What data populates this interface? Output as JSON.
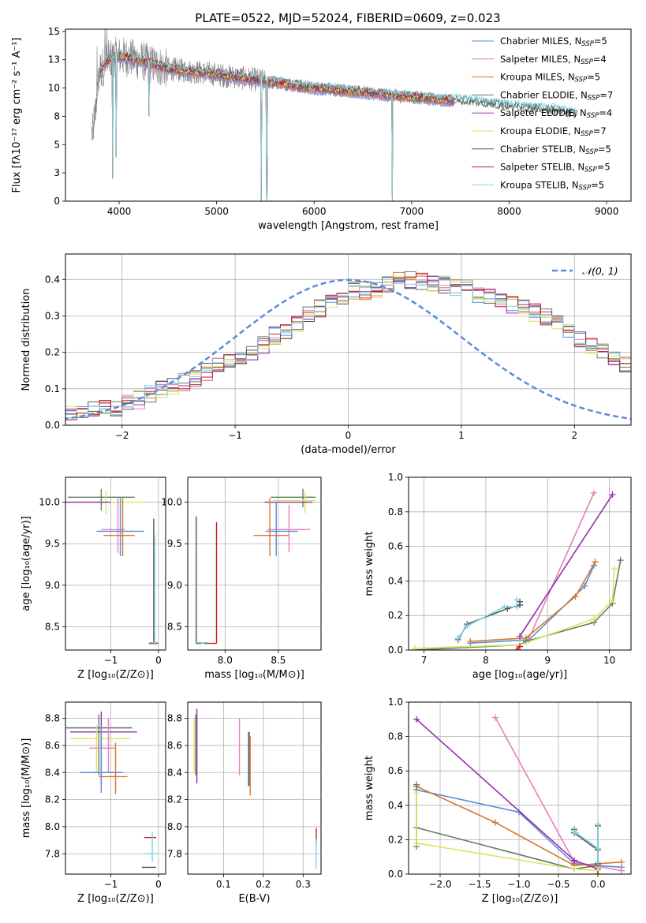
{
  "title": "PLATE=0522, MJD=52024, FIBERID=0609, z=0.023",
  "series_colors": [
    "#5b8bd9",
    "#e47fbd",
    "#d9782a",
    "#5e7f63",
    "#9030aa",
    "#d9e65e",
    "#555555",
    "#c81e1e",
    "#7fd4e0"
  ],
  "chart_data": [
    {
      "type": "line",
      "id": "spectrum",
      "title": "PLATE=0522, MJD=52024, FIBERID=0609, z=0.023",
      "xlabel": "wavelength [Angstrom, rest frame]",
      "ylabel": "Flux [fλ10⁻¹⁷ erg cm⁻² s⁻¹ A⁻¹]",
      "xlim": [
        3450,
        9250
      ],
      "ylim": [
        0,
        15.2
      ],
      "xticks": [
        4000,
        5000,
        6000,
        7000,
        8000,
        9000
      ],
      "yticks": [
        0.0,
        2.5,
        5.0,
        7.5,
        10.0,
        12.5,
        15.0
      ],
      "legend_position": "upper right",
      "legend": [
        {
          "name": "Chabrier MILES, N",
          "sub": "SSP",
          "suffix": "=5"
        },
        {
          "name": "Salpeter MILES, N",
          "sub": "SSP",
          "suffix": "=4"
        },
        {
          "name": "Kroupa MILES, N",
          "sub": "SSP",
          "suffix": "=5"
        },
        {
          "name": "Chabrier ELODIE, N",
          "sub": "SSP",
          "suffix": "=7"
        },
        {
          "name": "Salpeter ELODIE, N",
          "sub": "SSP",
          "suffix": "=4"
        },
        {
          "name": "Kroupa ELODIE, N",
          "sub": "SSP",
          "suffix": "=7"
        },
        {
          "name": "Chabrier STELIB, N",
          "sub": "SSP",
          "suffix": "=5"
        },
        {
          "name": "Salpeter STELIB, N",
          "sub": "SSP",
          "suffix": "=5"
        },
        {
          "name": "Kroupa STELIB, N",
          "sub": "SSP",
          "suffix": "=5"
        }
      ],
      "model_continuum": [
        [
          3730,
          6.0
        ],
        [
          3800,
          11.5
        ],
        [
          3900,
          12.6
        ],
        [
          4000,
          12.8
        ],
        [
          4100,
          12.7
        ],
        [
          4300,
          12.2
        ],
        [
          4500,
          11.7
        ],
        [
          5000,
          11.2
        ],
        [
          5500,
          10.6
        ],
        [
          6000,
          10.0
        ],
        [
          6500,
          9.6
        ],
        [
          7000,
          9.2
        ],
        [
          7400,
          8.9
        ],
        [
          7500,
          8.9
        ],
        [
          8000,
          8.4
        ],
        [
          8500,
          8.0
        ],
        [
          8700,
          7.6
        ]
      ],
      "model_spikes": [
        [
          3935,
          2.0
        ],
        [
          3970,
          3.9
        ],
        [
          4305,
          7.5
        ],
        [
          5460,
          0.0
        ],
        [
          5515,
          0.0
        ],
        [
          6800,
          0.0
        ]
      ],
      "data_range": [
        3720,
        7440
      ]
    },
    {
      "type": "histogram",
      "id": "residuals",
      "xlabel": "(data-model)/error",
      "ylabel": "Normed distribution",
      "xlim": [
        -2.5,
        2.5
      ],
      "ylim": [
        0,
        0.47
      ],
      "xticks": [
        -2,
        -1,
        0,
        1,
        2
      ],
      "yticks": [
        0.0,
        0.1,
        0.2,
        0.3,
        0.4
      ],
      "bin_width": 0.1,
      "grid": true,
      "reference_curve": {
        "name": "𝒩(0, 1)",
        "mean": 0,
        "sigma": 1,
        "style": "dashed"
      },
      "base_counts": [
        0.023,
        0.028,
        0.034,
        0.04,
        0.044,
        0.05,
        0.058,
        0.07,
        0.085,
        0.1,
        0.11,
        0.118,
        0.13,
        0.145,
        0.165,
        0.18,
        0.19,
        0.2,
        0.22,
        0.245,
        0.26,
        0.28,
        0.3,
        0.32,
        0.34,
        0.355,
        0.37,
        0.37,
        0.375,
        0.385,
        0.395,
        0.4,
        0.395,
        0.39,
        0.385,
        0.38,
        0.375,
        0.36,
        0.35,
        0.34,
        0.33,
        0.32,
        0.31,
        0.295,
        0.28,
        0.26,
        0.24,
        0.22,
        0.2,
        0.18,
        0.165,
        0.15,
        0.14,
        0.12,
        0.1,
        0.085,
        0.075,
        0.065,
        0.055,
        0.05,
        0.045,
        0.04,
        0.035,
        0.03,
        0.027,
        0.025,
        0.023,
        0.022
      ],
      "base_start": -2.6
    },
    {
      "type": "scatter",
      "id": "age-vs-Z",
      "xlabel": "Z [log₁₀(Z/Z⊙)]",
      "ylabel": "age  [log₁₀(age/yr)]",
      "xlim": [
        -1.95,
        0.15
      ],
      "ylim": [
        8.22,
        10.3
      ],
      "xticks": [
        -1,
        0
      ],
      "yticks": [
        8.5,
        9.0,
        9.5,
        10.0
      ],
      "errorbars": [
        {
          "series": 3,
          "x": -1.2,
          "xerr": [
            0.7,
            0.7
          ],
          "y": 10.06,
          "yerr": [
            0.16,
            0.1
          ]
        },
        {
          "series": 5,
          "x": -1.1,
          "xerr": [
            0.8,
            0.8
          ],
          "y": 10.0,
          "yerr": [
            0.15,
            0.14
          ]
        },
        {
          "series": 4,
          "x": -1.0,
          "xerr": [
            0.95,
            0.0
          ],
          "y": 10.0,
          "yerr": [
            0.0,
            0.0
          ]
        },
        {
          "series": 1,
          "x": -0.85,
          "xerr": [
            0.35,
            0.15
          ],
          "y": 9.67,
          "yerr": [
            0.28,
            0.38
          ]
        },
        {
          "series": 0,
          "x": -0.8,
          "xerr": [
            0.5,
            0.5
          ],
          "y": 9.65,
          "yerr": [
            0.3,
            0.4
          ]
        },
        {
          "series": 2,
          "x": -0.75,
          "xerr": [
            0.4,
            0.25
          ],
          "y": 9.6,
          "yerr": [
            0.25,
            0.45
          ]
        },
        {
          "series": 6,
          "x": -0.1,
          "xerr": [
            0.05,
            0.05
          ],
          "y": 8.3,
          "yerr": [
            0.0,
            1.5
          ]
        },
        {
          "series": 7,
          "x": -0.05,
          "xerr": [
            0.15,
            0.05
          ],
          "y": 8.3,
          "yerr": [
            0.0,
            0.0
          ]
        },
        {
          "series": 8,
          "x": -0.08,
          "xerr": [
            0.12,
            0.08
          ],
          "y": 8.31,
          "yerr": [
            0.03,
            1.3
          ]
        }
      ]
    },
    {
      "type": "scatter",
      "id": "age-vs-mass",
      "xlabel": "mass [log₁₀(M/M⊙)]",
      "ylabel": "",
      "xlim": [
        7.65,
        8.9
      ],
      "ylim": [
        8.22,
        10.3
      ],
      "xticks": [
        8.0,
        8.5
      ],
      "yticks": [
        8.5,
        9.0,
        9.5,
        10.0
      ],
      "errorbars": [
        {
          "series": 3,
          "x": 8.73,
          "xerr": [
            0.3,
            0.12
          ],
          "y": 10.06,
          "yerr": [
            0.12,
            0.1
          ]
        },
        {
          "series": 5,
          "x": 8.75,
          "xerr": [
            0.3,
            0.1
          ],
          "y": 10.02,
          "yerr": [
            0.15,
            0.1
          ]
        },
        {
          "series": 4,
          "x": 8.67,
          "xerr": [
            0.3,
            0.15
          ],
          "y": 10.0,
          "yerr": [
            0.0,
            0.0
          ]
        },
        {
          "series": 1,
          "x": 8.6,
          "xerr": [
            0.2,
            0.2
          ],
          "y": 9.67,
          "yerr": [
            0.27,
            0.3
          ]
        },
        {
          "series": 0,
          "x": 8.48,
          "xerr": [
            0.1,
            0.2
          ],
          "y": 9.65,
          "yerr": [
            0.3,
            0.35
          ]
        },
        {
          "series": 2,
          "x": 8.42,
          "xerr": [
            0.15,
            0.18
          ],
          "y": 9.6,
          "yerr": [
            0.25,
            0.45
          ]
        },
        {
          "series": 6,
          "x": 7.73,
          "xerr": [
            0.0,
            0.05
          ],
          "y": 8.3,
          "yerr": [
            0.0,
            1.53
          ]
        },
        {
          "series": 7,
          "x": 7.92,
          "xerr": [
            0.12,
            0.0
          ],
          "y": 8.3,
          "yerr": [
            0.0,
            1.46
          ]
        },
        {
          "series": 8,
          "x": 7.79,
          "xerr": [
            0.06,
            0.06
          ],
          "y": 8.31,
          "yerr": [
            0.0,
            0.0
          ]
        }
      ]
    },
    {
      "type": "line",
      "id": "weight-vs-age",
      "xlabel": "age  [log₁₀(age/yr)]",
      "ylabel": "mass weight",
      "xlim": [
        6.75,
        10.35
      ],
      "ylim": [
        0,
        1.0
      ],
      "xticks": [
        7,
        8,
        9,
        10
      ],
      "yticks": [
        0.0,
        0.2,
        0.4,
        0.6,
        0.8,
        1.0
      ],
      "grid": true,
      "series": [
        {
          "series": 0,
          "x": [
            7.75,
            8.7,
            9.6,
            9.75
          ],
          "y": [
            0.04,
            0.06,
            0.37,
            0.49
          ]
        },
        {
          "series": 1,
          "x": [
            8.7,
            9.75
          ],
          "y": [
            0.07,
            0.91
          ]
        },
        {
          "series": 2,
          "x": [
            7.75,
            8.65,
            9.45,
            9.77
          ],
          "y": [
            0.05,
            0.07,
            0.31,
            0.51
          ]
        },
        {
          "series": 3,
          "x": [
            6.85,
            8.55,
            8.65,
            9.75,
            10.05,
            10.18
          ],
          "y": [
            0.0,
            0.03,
            0.05,
            0.16,
            0.27,
            0.52
          ]
        },
        {
          "series": 4,
          "x": [
            8.55,
            10.05
          ],
          "y": [
            0.08,
            0.9
          ]
        },
        {
          "series": 5,
          "x": [
            6.85,
            8.55,
            9.75,
            10.05,
            10.08
          ],
          "y": [
            0.01,
            0.03,
            0.18,
            0.29,
            0.47
          ]
        },
        {
          "series": 6,
          "x": [
            7.55,
            7.7,
            8.35,
            8.55,
            8.55
          ],
          "y": [
            0.06,
            0.15,
            0.24,
            0.26,
            0.28
          ]
        },
        {
          "series": 8,
          "x": [
            7.55,
            7.7,
            8.3,
            8.5,
            8.5
          ],
          "y": [
            0.07,
            0.14,
            0.25,
            0.25,
            0.29
          ]
        },
        {
          "series": 7,
          "x": [
            8.55,
            8.5
          ],
          "y": [
            0.02,
            0.0
          ]
        }
      ]
    },
    {
      "type": "scatter",
      "id": "mass-vs-Z",
      "xlabel": "Z [log₁₀(Z/Z⊙)]",
      "ylabel": "mass [log₁₀(M/M⊙)]",
      "xlim": [
        -1.95,
        0.15
      ],
      "ylim": [
        7.65,
        8.92
      ],
      "xticks": [
        -1,
        0
      ],
      "yticks": [
        7.8,
        8.0,
        8.2,
        8.4,
        8.6,
        8.8
      ],
      "errorbars": [
        {
          "series": 3,
          "x": -1.25,
          "xerr": [
            0.7,
            0.7
          ],
          "y": 8.73,
          "yerr": [
            0.35,
            0.1
          ]
        },
        {
          "series": 4,
          "x": -1.2,
          "xerr": [
            0.65,
            0.75
          ],
          "y": 8.7,
          "yerr": [
            0.39,
            0.15
          ]
        },
        {
          "series": 5,
          "x": -1.3,
          "xerr": [
            0.55,
            0.7
          ],
          "y": 8.65,
          "yerr": [
            0.25,
            0.1
          ]
        },
        {
          "series": 1,
          "x": -1.05,
          "xerr": [
            0.4,
            0.15
          ],
          "y": 8.58,
          "yerr": [
            0.18,
            0.22
          ]
        },
        {
          "series": 0,
          "x": -1.2,
          "xerr": [
            0.45,
            0.45
          ],
          "y": 8.4,
          "yerr": [
            0.15,
            0.35
          ]
        },
        {
          "series": 2,
          "x": -0.9,
          "xerr": [
            0.35,
            0.25
          ],
          "y": 8.37,
          "yerr": [
            0.13,
            0.25
          ]
        },
        {
          "series": 7,
          "x": -0.15,
          "xerr": [
            0.15,
            0.1
          ],
          "y": 7.92,
          "yerr": [
            0.0,
            0.0
          ]
        },
        {
          "series": 6,
          "x": -0.15,
          "xerr": [
            0.2,
            0.1
          ],
          "y": 7.7,
          "yerr": [
            0.0,
            0.0
          ]
        },
        {
          "series": 8,
          "x": -0.13,
          "xerr": [
            0.14,
            0.12
          ],
          "y": 7.8,
          "yerr": [
            0.06,
            0.16
          ]
        }
      ]
    },
    {
      "type": "scatter",
      "id": "mass-vs-EBV",
      "xlabel": "E(B-V)",
      "ylabel": "",
      "xlim": [
        0.01,
        0.345
      ],
      "ylim": [
        7.65,
        8.92
      ],
      "xticks": [
        0.1,
        0.2,
        0.3
      ],
      "yticks": [
        7.8,
        8.0,
        8.2,
        8.4,
        8.6,
        8.8
      ],
      "errorbars": [
        {
          "series": 3,
          "x": 0.03,
          "xerr": [
            0,
            0
          ],
          "y": 8.73,
          "yerr": [
            0.35,
            0.1
          ]
        },
        {
          "series": 5,
          "x": 0.026,
          "xerr": [
            0,
            0
          ],
          "y": 8.65,
          "yerr": [
            0.25,
            0.15
          ]
        },
        {
          "series": 4,
          "x": 0.033,
          "xerr": [
            0,
            0
          ],
          "y": 8.7,
          "yerr": [
            0.38,
            0.17
          ]
        },
        {
          "series": 1,
          "x": 0.14,
          "xerr": [
            0,
            0
          ],
          "y": 8.58,
          "yerr": [
            0.2,
            0.22
          ]
        },
        {
          "series": 0,
          "x": 0.165,
          "xerr": [
            0,
            0
          ],
          "y": 8.5,
          "yerr": [
            0.2,
            0.2
          ]
        },
        {
          "series": 2,
          "x": 0.167,
          "xerr": [
            0,
            0
          ],
          "y": 8.45,
          "yerr": [
            0.22,
            0.22
          ]
        },
        {
          "series": 6,
          "x": 0.163,
          "xerr": [
            0,
            0
          ],
          "y": 8.5,
          "yerr": [
            0.2,
            0.2
          ]
        },
        {
          "series": 7,
          "x": 0.333,
          "xerr": [
            0,
            0
          ],
          "y": 7.92,
          "yerr": [
            0.05,
            0.07
          ]
        },
        {
          "series": 8,
          "x": 0.333,
          "xerr": [
            0,
            0
          ],
          "y": 7.79,
          "yerr": [
            0.1,
            0.12
          ]
        }
      ]
    },
    {
      "type": "line",
      "id": "weight-vs-Z",
      "xlabel": "Z [log₁₀(Z/Z⊙)]",
      "ylabel": "mass weight",
      "xlim": [
        -2.4,
        0.42
      ],
      "ylim": [
        0,
        1.0
      ],
      "xticks": [
        -2.0,
        -1.5,
        -1.0,
        -0.5,
        0.0
      ],
      "yticks": [
        0.0,
        0.2,
        0.4,
        0.6,
        0.8,
        1.0
      ],
      "grid": true,
      "series": [
        {
          "series": 0,
          "x": [
            -2.3,
            -1.0,
            -0.3,
            0.3
          ],
          "y": [
            0.49,
            0.36,
            0.06,
            0.04
          ]
        },
        {
          "series": 1,
          "x": [
            -1.3,
            -0.3,
            0.3
          ],
          "y": [
            0.91,
            0.07,
            0.02
          ]
        },
        {
          "series": 2,
          "x": [
            -2.3,
            -1.3,
            -0.3,
            0.3
          ],
          "y": [
            0.51,
            0.3,
            0.05,
            0.07
          ]
        },
        {
          "series": 3,
          "x": [
            -2.3,
            -2.3,
            -2.3,
            -0.3,
            0.0,
            0.0
          ],
          "y": [
            0.52,
            0.16,
            0.27,
            0.03,
            0.05,
            0.0
          ]
        },
        {
          "series": 4,
          "x": [
            -2.3,
            -0.3,
            0.0
          ],
          "y": [
            0.9,
            0.08,
            0.03
          ]
        },
        {
          "series": 5,
          "x": [
            -2.3,
            -2.3,
            -0.3,
            0.0,
            0.0
          ],
          "y": [
            0.47,
            0.18,
            0.03,
            0.02,
            0.29
          ]
        },
        {
          "series": 6,
          "x": [
            -0.3,
            -0.3,
            0.0,
            0.0,
            0.0
          ],
          "y": [
            0.26,
            0.24,
            0.14,
            0.28,
            0.06
          ]
        },
        {
          "series": 8,
          "x": [
            -0.3,
            -0.28,
            0.0,
            0.0,
            0.0
          ],
          "y": [
            0.25,
            0.24,
            0.15,
            0.29,
            0.07
          ]
        },
        {
          "series": 7,
          "x": [
            0.0
          ],
          "y": [
            0.0
          ]
        }
      ]
    }
  ]
}
